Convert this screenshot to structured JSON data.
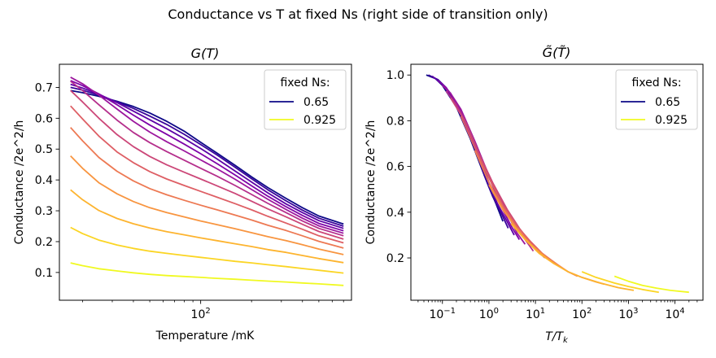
{
  "suptitle": "Conductance vs T at fixed Ns (right side of transition only)",
  "chart_data": [
    {
      "type": "line",
      "title": "G(T)",
      "xlabel": "Temperature /mK",
      "ylabel": "Conductance /2e^2/h",
      "xscale": "log",
      "xlim": [
        14.6,
        780
      ],
      "ylim": [
        0.01,
        0.775
      ],
      "xticks": [
        100
      ],
      "xtick_labels": [
        "10^2"
      ],
      "yticks": [
        0.1,
        0.2,
        0.3,
        0.4,
        0.5,
        0.6,
        0.7
      ],
      "ytick_labels": [
        "0.1",
        "0.2",
        "0.3",
        "0.4",
        "0.5",
        "0.6",
        "0.7"
      ],
      "grid": false,
      "legend": {
        "title": "fixed Ns:",
        "position": "top-right",
        "entries": [
          {
            "label": "0.65",
            "color": "#0d0887"
          },
          {
            "label": "0.925",
            "color": "#f0f921"
          }
        ]
      },
      "x": [
        17,
        20,
        25,
        32,
        40,
        50,
        63,
        80,
        100,
        125,
        160,
        200,
        250,
        320,
        400,
        500,
        700
      ],
      "series": [
        {
          "color": "#0d0887",
          "values": [
            0.69,
            0.683,
            0.671,
            0.655,
            0.638,
            0.617,
            0.59,
            0.558,
            0.522,
            0.487,
            0.447,
            0.41,
            0.375,
            0.34,
            0.31,
            0.283,
            0.257
          ]
        },
        {
          "color": "#3a049a",
          "values": [
            0.7,
            0.691,
            0.675,
            0.653,
            0.632,
            0.607,
            0.58,
            0.548,
            0.515,
            0.481,
            0.441,
            0.404,
            0.368,
            0.332,
            0.302,
            0.276,
            0.25
          ]
        },
        {
          "color": "#5c01a6",
          "values": [
            0.71,
            0.698,
            0.678,
            0.651,
            0.623,
            0.595,
            0.566,
            0.534,
            0.502,
            0.468,
            0.429,
            0.393,
            0.358,
            0.322,
            0.294,
            0.268,
            0.243
          ]
        },
        {
          "color": "#7e03a8",
          "values": [
            0.722,
            0.706,
            0.679,
            0.644,
            0.61,
            0.578,
            0.548,
            0.516,
            0.485,
            0.453,
            0.416,
            0.381,
            0.347,
            0.313,
            0.285,
            0.259,
            0.235
          ]
        },
        {
          "color": "#9c179e",
          "values": [
            0.733,
            0.712,
            0.675,
            0.63,
            0.59,
            0.555,
            0.524,
            0.494,
            0.465,
            0.436,
            0.402,
            0.369,
            0.337,
            0.304,
            0.276,
            0.251,
            0.227
          ]
        },
        {
          "color": "#b52f8c",
          "values": [
            0.72,
            0.69,
            0.644,
            0.594,
            0.554,
            0.521,
            0.492,
            0.464,
            0.438,
            0.412,
            0.382,
            0.353,
            0.324,
            0.294,
            0.267,
            0.243,
            0.219
          ]
        },
        {
          "color": "#cc4778",
          "values": [
            0.69,
            0.653,
            0.6,
            0.547,
            0.508,
            0.476,
            0.449,
            0.425,
            0.403,
            0.381,
            0.356,
            0.331,
            0.306,
            0.28,
            0.256,
            0.233,
            0.208
          ]
        },
        {
          "color": "#de5f65",
          "values": [
            0.64,
            0.598,
            0.542,
            0.491,
            0.456,
            0.427,
            0.403,
            0.382,
            0.363,
            0.344,
            0.323,
            0.303,
            0.282,
            0.26,
            0.24,
            0.219,
            0.196
          ]
        },
        {
          "color": "#ed7953",
          "values": [
            0.57,
            0.527,
            0.473,
            0.428,
            0.397,
            0.372,
            0.352,
            0.334,
            0.318,
            0.303,
            0.286,
            0.27,
            0.253,
            0.236,
            0.219,
            0.201,
            0.179
          ]
        },
        {
          "color": "#f89540",
          "values": [
            0.478,
            0.438,
            0.391,
            0.355,
            0.33,
            0.31,
            0.294,
            0.28,
            0.267,
            0.255,
            0.242,
            0.229,
            0.216,
            0.203,
            0.19,
            0.176,
            0.158
          ]
        },
        {
          "color": "#fdb42f",
          "values": [
            0.368,
            0.336,
            0.301,
            0.275,
            0.258,
            0.244,
            0.232,
            0.222,
            0.212,
            0.203,
            0.193,
            0.184,
            0.174,
            0.165,
            0.155,
            0.145,
            0.132
          ]
        },
        {
          "color": "#fbd524",
          "values": [
            0.246,
            0.226,
            0.205,
            0.189,
            0.178,
            0.169,
            0.162,
            0.155,
            0.149,
            0.143,
            0.136,
            0.131,
            0.125,
            0.119,
            0.113,
            0.107,
            0.098
          ]
        },
        {
          "color": "#f0f921",
          "values": [
            0.131,
            0.122,
            0.112,
            0.105,
            0.099,
            0.094,
            0.09,
            0.087,
            0.084,
            0.081,
            0.078,
            0.075,
            0.072,
            0.069,
            0.066,
            0.063,
            0.058
          ]
        }
      ]
    },
    {
      "type": "line",
      "title": "G̃(T̃)",
      "xlabel": "T/T_k",
      "ylabel": "Conductance /2e^2/h",
      "xscale": "log",
      "xlim": [
        0.021,
        40000
      ],
      "ylim": [
        0.015,
        1.047
      ],
      "xticks": [
        0.1,
        1,
        10,
        100,
        1000,
        10000
      ],
      "xtick_labels": [
        "10^-1",
        "10^0",
        "10^1",
        "10^2",
        "10^3",
        "10^4"
      ],
      "yticks": [
        0.2,
        0.4,
        0.6,
        0.8,
        1.0
      ],
      "ytick_labels": [
        "0.2",
        "0.4",
        "0.6",
        "0.8",
        "1.0"
      ],
      "grid": false,
      "legend": {
        "title": "fixed Ns:",
        "position": "top-right",
        "entries": [
          {
            "label": "0.65",
            "color": "#0d0887"
          },
          {
            "label": "0.925",
            "color": "#f0f921"
          }
        ]
      },
      "series": [
        {
          "color": "#0d0887",
          "x": [
            0.045,
            0.07,
            0.1,
            0.2,
            0.4,
            0.7,
            1.0,
            1.4,
            2.0
          ],
          "y": [
            1.0,
            0.985,
            0.955,
            0.86,
            0.72,
            0.59,
            0.51,
            0.44,
            0.36
          ]
        },
        {
          "color": "#3a049a",
          "x": [
            0.05,
            0.08,
            0.12,
            0.25,
            0.5,
            0.8,
            1.2,
            1.8,
            2.6
          ],
          "y": [
            1.0,
            0.98,
            0.945,
            0.83,
            0.68,
            0.56,
            0.47,
            0.4,
            0.33
          ]
        },
        {
          "color": "#5c01a6",
          "x": [
            0.06,
            0.1,
            0.15,
            0.3,
            0.6,
            1.0,
            1.5,
            2.3,
            3.5
          ],
          "y": [
            0.995,
            0.96,
            0.92,
            0.8,
            0.65,
            0.53,
            0.44,
            0.37,
            0.3
          ]
        },
        {
          "color": "#7e03a8",
          "x": [
            0.08,
            0.12,
            0.2,
            0.4,
            0.8,
            1.3,
            2.0,
            3.0,
            4.5
          ],
          "y": [
            0.975,
            0.945,
            0.88,
            0.75,
            0.6,
            0.5,
            0.41,
            0.34,
            0.28
          ]
        },
        {
          "color": "#9c179e",
          "x": [
            0.1,
            0.15,
            0.25,
            0.5,
            1.0,
            1.7,
            2.7,
            4.0,
            6.0
          ],
          "y": [
            0.955,
            0.92,
            0.85,
            0.71,
            0.56,
            0.46,
            0.38,
            0.31,
            0.26
          ]
        },
        {
          "color": "#b52f8c",
          "x": [
            0.12,
            0.2,
            0.35,
            0.7,
            1.4,
            2.4,
            4.0,
            6.0,
            9.0
          ],
          "y": [
            0.93,
            0.87,
            0.78,
            0.63,
            0.5,
            0.41,
            0.33,
            0.28,
            0.23
          ]
        },
        {
          "color": "#cc4778",
          "x": [
            0.15,
            0.3,
            0.6,
            1.2,
            2.5,
            4.5,
            7.0,
            11.0,
            16.0
          ],
          "y": [
            0.9,
            0.8,
            0.66,
            0.53,
            0.41,
            0.33,
            0.28,
            0.23,
            0.2
          ]
        },
        {
          "color": "#de5f65",
          "x": [
            0.25,
            0.5,
            1.0,
            2.0,
            4.0,
            8.0,
            14.0,
            22.0,
            35.0
          ],
          "y": [
            0.82,
            0.68,
            0.55,
            0.43,
            0.34,
            0.27,
            0.22,
            0.19,
            0.16
          ]
        },
        {
          "color": "#ed7953",
          "x": [
            0.5,
            1.0,
            2.0,
            4.0,
            8.0,
            16.0,
            30.0,
            50.0,
            80.0
          ],
          "y": [
            0.67,
            0.53,
            0.42,
            0.33,
            0.26,
            0.21,
            0.17,
            0.14,
            0.12
          ]
        },
        {
          "color": "#f89540",
          "x": [
            1.0,
            2.0,
            5.0,
            10.0,
            20.0,
            50.0,
            100.0,
            200.0,
            300.0
          ],
          "y": [
            0.52,
            0.41,
            0.3,
            0.24,
            0.19,
            0.14,
            0.115,
            0.095,
            0.085
          ]
        },
        {
          "color": "#fdb42f",
          "x": [
            3.0,
            6.0,
            12.0,
            25.0,
            50.0,
            100.0,
            250.0,
            600.0,
            1300.0
          ],
          "y": [
            0.35,
            0.28,
            0.22,
            0.175,
            0.14,
            0.115,
            0.09,
            0.07,
            0.058
          ]
        },
        {
          "color": "#fbd524",
          "x": [
            100.0,
            200.0,
            500.0,
            1000.0,
            2000.0,
            4500.0
          ],
          "y": [
            0.14,
            0.115,
            0.09,
            0.075,
            0.062,
            0.05
          ]
        },
        {
          "color": "#f0f921",
          "x": [
            500.0,
            1000.0,
            2000.0,
            4000.0,
            8000.0,
            20000.0
          ],
          "y": [
            0.12,
            0.098,
            0.08,
            0.068,
            0.058,
            0.05
          ]
        }
      ]
    }
  ]
}
